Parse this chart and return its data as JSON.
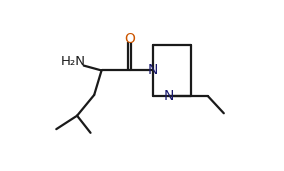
{
  "bg_color": "#ffffff",
  "line_color": "#1a1a1a",
  "line_width": 1.6,
  "label_color_N": "#1a1a6e",
  "label_color_O": "#cc5500",
  "label_color_NH2": "#1a1a1a",
  "figsize": [
    2.84,
    1.71
  ],
  "dpi": 100,
  "alpha_x": 3.2,
  "alpha_y": 3.4,
  "h2n_x": 2.05,
  "h2n_y": 3.75,
  "carbonyl_x": 4.35,
  "carbonyl_y": 3.4,
  "o_x": 4.35,
  "o_y": 4.55,
  "ch2_x": 2.9,
  "ch2_y": 2.4,
  "iso_x": 2.2,
  "iso_y": 1.55,
  "lm_x": 1.35,
  "lm_y": 1.0,
  "rm_x": 2.75,
  "rm_y": 0.85,
  "n1_x": 5.3,
  "n1_y": 3.4,
  "p_tl_x": 5.3,
  "p_tl_y": 4.45,
  "p_tr_x": 6.85,
  "p_tr_y": 4.45,
  "p_br_x": 6.85,
  "p_br_y": 2.35,
  "n2_x": 5.95,
  "n2_y": 2.35,
  "p_bl_x": 5.3,
  "p_bl_y": 2.35,
  "eth1_x": 7.55,
  "eth1_y": 2.35,
  "eth2_x": 8.2,
  "eth2_y": 1.65,
  "xlim": [
    0.5,
    9.5
  ],
  "ylim": [
    0.3,
    5.2
  ]
}
